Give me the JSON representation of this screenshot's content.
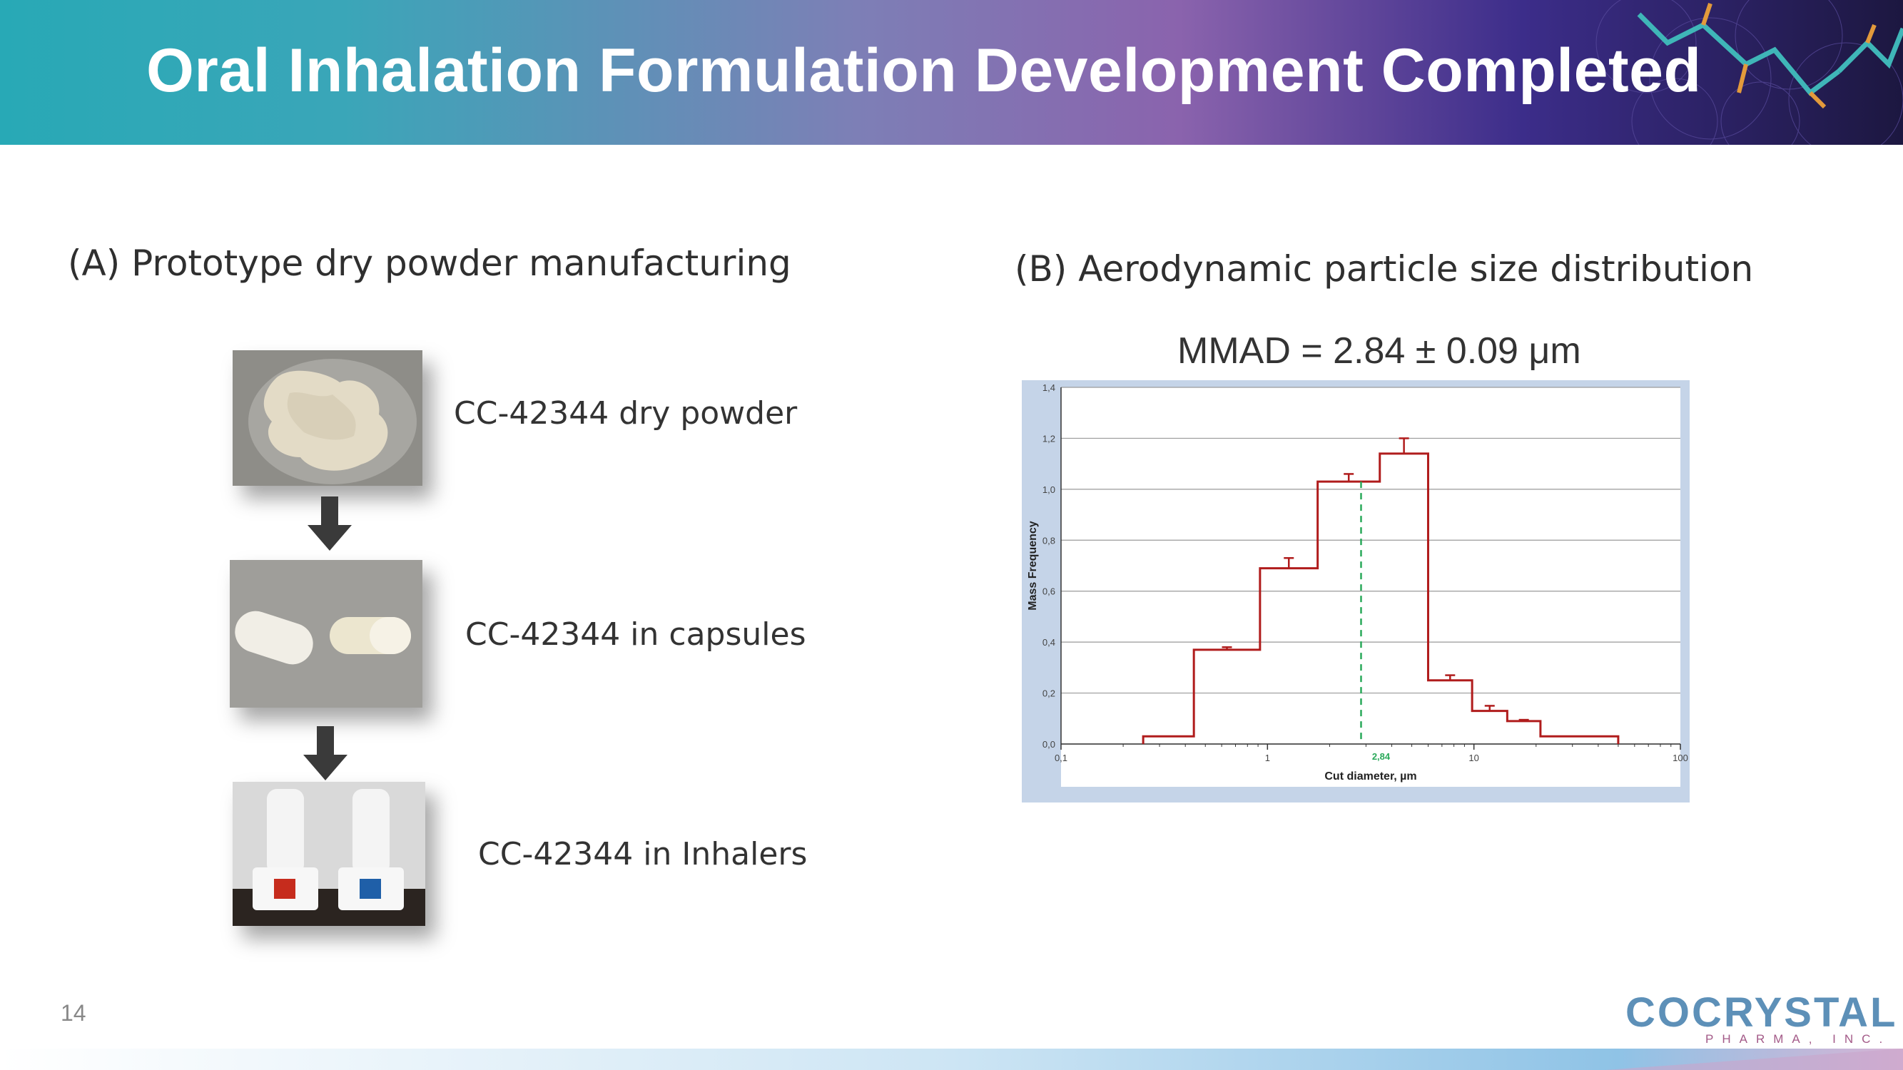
{
  "header": {
    "title": "Oral Inhalation Formulation Development Completed"
  },
  "section_a": {
    "title": "(A) Prototype dry powder manufacturing",
    "steps": [
      {
        "caption": "CC-42344 dry powder"
      },
      {
        "caption": "CC-42344 in capsules"
      },
      {
        "caption": "CC-42344 in Inhalers"
      }
    ]
  },
  "section_b": {
    "title": "(B) Aerodynamic particle size distribution",
    "mmad_label": "MMAD = 2.84 ± 0.09 μm"
  },
  "chart_data": {
    "type": "line",
    "step": true,
    "x_scale": "log",
    "xlabel": "Cut diameter, µm",
    "ylabel": "Mass Frequency",
    "xlim": [
      0.1,
      100
    ],
    "ylim": [
      0.0,
      1.4
    ],
    "x_ticks": [
      "0,1",
      "1",
      "10",
      "100"
    ],
    "y_ticks": [
      "0,0",
      "0,2",
      "0,4",
      "0,6",
      "0,8",
      "1,0",
      "1,2",
      "1,4"
    ],
    "grid": true,
    "series": [
      {
        "color": "#b01c1c",
        "bins": [
          {
            "x0": 0.25,
            "x1": 0.44,
            "y": 0.03,
            "err": 0.0
          },
          {
            "x0": 0.44,
            "x1": 0.92,
            "y": 0.37,
            "err": 0.01
          },
          {
            "x0": 0.92,
            "x1": 1.75,
            "y": 0.69,
            "err": 0.04
          },
          {
            "x0": 1.75,
            "x1": 3.5,
            "y": 1.03,
            "err": 0.03
          },
          {
            "x0": 3.5,
            "x1": 6.0,
            "y": 1.14,
            "err": 0.06
          },
          {
            "x0": 6.0,
            "x1": 9.8,
            "y": 0.25,
            "err": 0.02
          },
          {
            "x0": 9.8,
            "x1": 14.5,
            "y": 0.13,
            "err": 0.02
          },
          {
            "x0": 14.5,
            "x1": 21.0,
            "y": 0.09,
            "err": 0.005
          },
          {
            "x0": 21.0,
            "x1": 50.0,
            "y": 0.03,
            "err": 0.0
          }
        ]
      }
    ],
    "mmad_marker": {
      "x": 2.84,
      "label": "2,84",
      "color": "#2aa95a"
    }
  },
  "footer": {
    "page_number": "14",
    "logo_main": "COCRYSTAL",
    "logo_sub": "PHARMA, INC."
  }
}
